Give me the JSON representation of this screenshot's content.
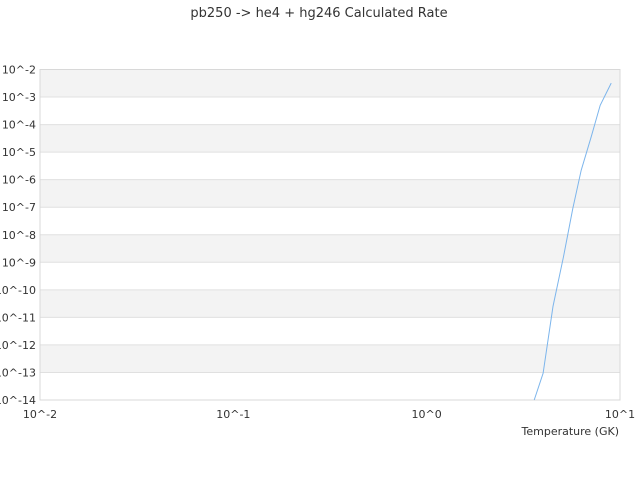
{
  "chart_data": {
    "type": "line",
    "title": "pb250 -> he4 + hg246 Calculated Rate",
    "xlabel": "Temperature (GK)",
    "ylabel": "",
    "x_scale": "log",
    "y_scale": "log",
    "xlim": [
      0.01,
      10
    ],
    "ylim": [
      1e-14,
      0.01
    ],
    "x_tick_labels": [
      "10^-2",
      "10^-1",
      "10^0",
      "10^1"
    ],
    "y_tick_labels": [
      "10^-2",
      "10^-3",
      "10^-4",
      "10^-5",
      "10^-6",
      "10^-7",
      "10^-8",
      "10^-9",
      "10^-10",
      "10^-11",
      "10^-12",
      "10^-13",
      "10^-14"
    ],
    "grid": "horizontal alternating bands",
    "legend": "none",
    "series": [
      {
        "color": "#7cb5ec",
        "x": [
          3.6,
          4.0,
          4.5,
          5.1,
          5.7,
          6.3,
          7.1,
          7.9,
          9.0
        ],
        "y": [
          1e-14,
          9.3e-14,
          2.5e-11,
          1.6e-09,
          9e-08,
          2.2e-06,
          3.6e-05,
          0.0005,
          0.0032
        ]
      }
    ]
  }
}
